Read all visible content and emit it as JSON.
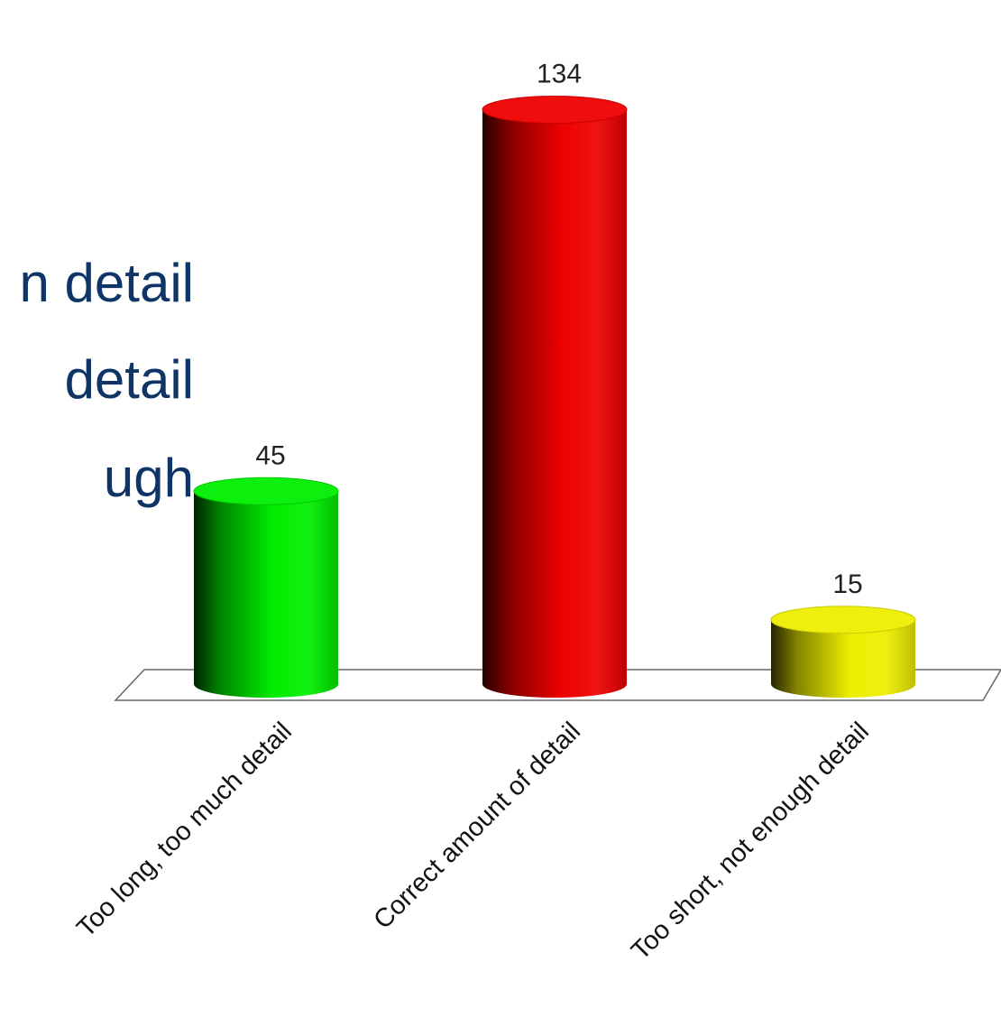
{
  "slide_text_fragments": [
    "n detail",
    "detail",
    "ugh"
  ],
  "chart_data": {
    "type": "bar",
    "style": "3d-cylinder",
    "title": "",
    "xlabel": "",
    "ylabel": "",
    "categories": [
      "Too long, too much detail",
      "Correct amount of detail",
      "Too short, not enough detail"
    ],
    "values": [
      45,
      134,
      15
    ],
    "value_labels": [
      "45",
      "134",
      "15"
    ],
    "colors": [
      "#00ee00",
      "#ee0000",
      "#eeee00"
    ],
    "grid": false,
    "legend": "none"
  }
}
